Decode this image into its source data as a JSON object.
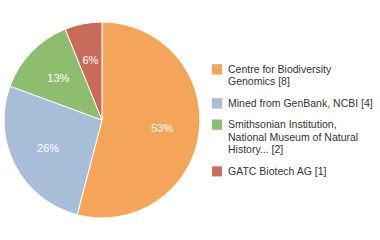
{
  "chart_data": {
    "type": "pie",
    "categories": [
      "Centre for Biodiversity\nGenomics [8]",
      "Mined from GenBank, NCBI [4]",
      "Smithsonian Institution,\nNational Museum of Natural\nHistory... [2]",
      "GATC Biotech AG [1]"
    ],
    "values": [
      53,
      26,
      13,
      6
    ],
    "value_labels": [
      "53%",
      "26%",
      "13%",
      "6%"
    ],
    "colors": [
      "#F5A55A",
      "#A8BED8",
      "#8FBD6E",
      "#C96B5A"
    ],
    "data_labels": true,
    "legend": "right"
  }
}
